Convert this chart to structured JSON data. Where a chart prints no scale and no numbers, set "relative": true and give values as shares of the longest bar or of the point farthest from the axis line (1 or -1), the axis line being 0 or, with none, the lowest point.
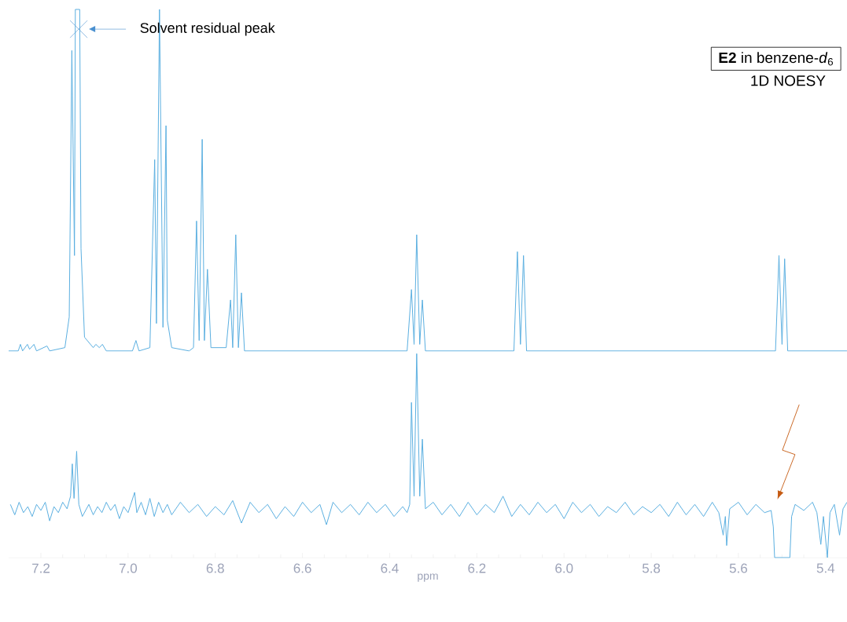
{
  "chart_data": {
    "type": "line",
    "title": "**E2** in benzene-*d*$_{6}$",
    "relative": true,
    "xlim": [
      7.274,
      5.351
    ],
    "xlabel": "ppm",
    "xticks": [
      7.2,
      {
        "value": 7,
        "label": "7.0"
      },
      6.8,
      6.6,
      6.4,
      6.2,
      {
        "value": 6,
        "label": "6.0"
      },
      5.8,
      5.6,
      5.4
    ],
    "annotations": [
      "Solvent residual peak",
      "1D NOESY"
    ],
    "series": [
      {
        "color": "#5aafe0",
        "x": [
          7.274,
          7.252,
          7.247,
          7.242,
          7.231,
          7.226,
          7.216,
          7.21,
          7.186,
          7.18,
          7.145,
          7.135,
          7.129,
          7.123,
          7.121,
          7.111,
          7.108,
          7.1,
          7.08,
          7.074,
          7.066,
          7.059,
          7.05,
          6.99,
          6.982,
          6.975,
          6.95,
          6.939,
          6.935,
          6.928,
          6.92,
          6.913,
          6.91,
          6.9,
          6.86,
          6.85,
          6.843,
          6.837,
          6.83,
          6.825,
          6.818,
          6.81,
          6.775,
          6.765,
          6.76,
          6.753,
          6.747,
          6.74,
          6.733,
          6.36,
          6.35,
          6.344,
          6.338,
          6.331,
          6.325,
          6.318,
          6.115,
          6.107,
          6.1,
          6.093,
          6.086,
          5.515,
          5.507,
          5.5,
          5.494,
          5.487,
          5.351
        ],
        "values": [
          0.377,
          0.377,
          0.389,
          0.377,
          0.389,
          0.38,
          0.389,
          0.377,
          0.386,
          0.377,
          0.383,
          0.439,
          0.925,
          0.551,
          1,
          1,
          0.564,
          0.402,
          0.383,
          0.389,
          0.383,
          0.389,
          0.377,
          0.377,
          0.396,
          0.377,
          0.383,
          0.726,
          0.427,
          1,
          0.42,
          0.788,
          0.433,
          0.383,
          0.377,
          0.383,
          0.614,
          0.396,
          0.763,
          0.396,
          0.526,
          0.383,
          0.383,
          0.47,
          0.383,
          0.589,
          0.383,
          0.483,
          0.377,
          0.377,
          0.489,
          0.389,
          0.589,
          0.389,
          0.47,
          0.377,
          0.377,
          0.558,
          0.389,
          0.551,
          0.377,
          0.377,
          0.551,
          0.389,
          0.545,
          0.377,
          0.377
        ]
      },
      {
        "color": "#5aafe0",
        "x": [
          7.27,
          7.26,
          7.25,
          7.24,
          7.23,
          7.22,
          7.21,
          7.2,
          7.19,
          7.18,
          7.17,
          7.16,
          7.15,
          7.14,
          7.132,
          7.128,
          7.124,
          7.118,
          7.113,
          7.105,
          7.09,
          7.08,
          7.07,
          7.06,
          7.05,
          7.04,
          7.03,
          7.02,
          7.01,
          7.0,
          6.985,
          6.98,
          6.97,
          6.96,
          6.95,
          6.94,
          6.93,
          6.92,
          6.91,
          6.9,
          6.88,
          6.86,
          6.84,
          6.82,
          6.8,
          6.78,
          6.76,
          6.74,
          6.72,
          6.7,
          6.68,
          6.66,
          6.64,
          6.62,
          6.6,
          6.58,
          6.56,
          6.545,
          6.53,
          6.51,
          6.49,
          6.47,
          6.45,
          6.43,
          6.41,
          6.39,
          6.37,
          6.36,
          6.354,
          6.35,
          6.344,
          6.338,
          6.331,
          6.325,
          6.318,
          6.3,
          6.28,
          6.26,
          6.24,
          6.22,
          6.2,
          6.18,
          6.16,
          6.14,
          6.12,
          6.1,
          6.08,
          6.06,
          6.04,
          6.02,
          6.0,
          5.98,
          5.96,
          5.94,
          5.92,
          5.9,
          5.88,
          5.86,
          5.84,
          5.82,
          5.8,
          5.78,
          5.76,
          5.74,
          5.72,
          5.7,
          5.68,
          5.66,
          5.645,
          5.635,
          5.63,
          5.627,
          5.62,
          5.6,
          5.58,
          5.56,
          5.54,
          5.525,
          5.52,
          5.517,
          5.482,
          5.478,
          5.47,
          5.45,
          5.43,
          5.42,
          5.411,
          5.405,
          5.396,
          5.39,
          5.38,
          5.368,
          5.36,
          5.351
        ],
        "values": [
          0.097,
          0.078,
          0.101,
          0.082,
          0.093,
          0.075,
          0.097,
          0.086,
          0.101,
          0.067,
          0.093,
          0.082,
          0.101,
          0.089,
          0.112,
          0.171,
          0.108,
          0.194,
          0.097,
          0.075,
          0.097,
          0.078,
          0.093,
          0.082,
          0.101,
          0.086,
          0.097,
          0.071,
          0.093,
          0.082,
          0.119,
          0.082,
          0.101,
          0.078,
          0.108,
          0.075,
          0.101,
          0.082,
          0.097,
          0.078,
          0.101,
          0.082,
          0.097,
          0.075,
          0.093,
          0.078,
          0.104,
          0.063,
          0.101,
          0.082,
          0.097,
          0.071,
          0.093,
          0.075,
          0.101,
          0.082,
          0.097,
          0.06,
          0.101,
          0.082,
          0.097,
          0.078,
          0.101,
          0.082,
          0.097,
          0.075,
          0.093,
          0.082,
          0.097,
          0.283,
          0.112,
          0.372,
          0.112,
          0.216,
          0.089,
          0.101,
          0.078,
          0.097,
          0.075,
          0.101,
          0.078,
          0.097,
          0.082,
          0.112,
          0.075,
          0.097,
          0.078,
          0.101,
          0.082,
          0.097,
          0.071,
          0.101,
          0.082,
          0.097,
          0.075,
          0.093,
          0.082,
          0.101,
          0.078,
          0.093,
          0.082,
          0.097,
          0.075,
          0.101,
          0.078,
          0.097,
          0.075,
          0.101,
          0.082,
          0.041,
          0.075,
          0.022,
          0.089,
          0.101,
          0.078,
          0.097,
          0.082,
          0.086,
          0.056,
          0,
          0,
          0.075,
          0.097,
          0.086,
          0.101,
          0.082,
          0.024,
          0.075,
          0,
          0.082,
          0.097,
          0.041,
          0.089,
          0.101
        ]
      }
    ]
  }
}
